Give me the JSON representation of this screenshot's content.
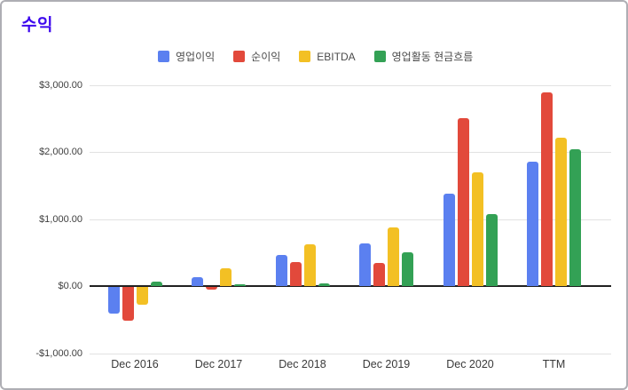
{
  "chart_data": {
    "type": "bar",
    "title": "수익",
    "categories": [
      "Dec 2016",
      "Dec 2017",
      "Dec 2018",
      "Dec 2019",
      "Dec 2020",
      "TTM"
    ],
    "series": [
      {
        "name": "영업이익",
        "color": "#5b80f0",
        "values": [
          -400,
          130,
          460,
          640,
          1380,
          1860
        ]
      },
      {
        "name": "순이익",
        "color": "#e2493b",
        "values": [
          -505,
          -45,
          355,
          350,
          2500,
          2890
        ]
      },
      {
        "name": "EBITDA",
        "color": "#f3c024",
        "values": [
          -265,
          260,
          625,
          870,
          1690,
          2210
        ]
      },
      {
        "name": "영업활동 현금흐름",
        "color": "#33a155",
        "values": [
          70,
          30,
          35,
          505,
          1075,
          2040
        ]
      }
    ],
    "y_axis": {
      "min": -1000,
      "max": 3000,
      "ticks": [
        {
          "label": "$3,000.00",
          "value": 3000
        },
        {
          "label": "$2,000.00",
          "value": 2000
        },
        {
          "label": "$1,000.00",
          "value": 1000
        },
        {
          "label": "$0.00",
          "value": 0
        },
        {
          "label": "-$1,000.00",
          "value": -1000
        }
      ]
    },
    "legend_position": "top",
    "grid": true,
    "colors": {
      "title": "#3d08ee",
      "gridline": "#e2e2e2",
      "zero_axis": "#212121",
      "tick_text": "#3e3e3e",
      "legend_text": "#4a4a4a"
    }
  }
}
